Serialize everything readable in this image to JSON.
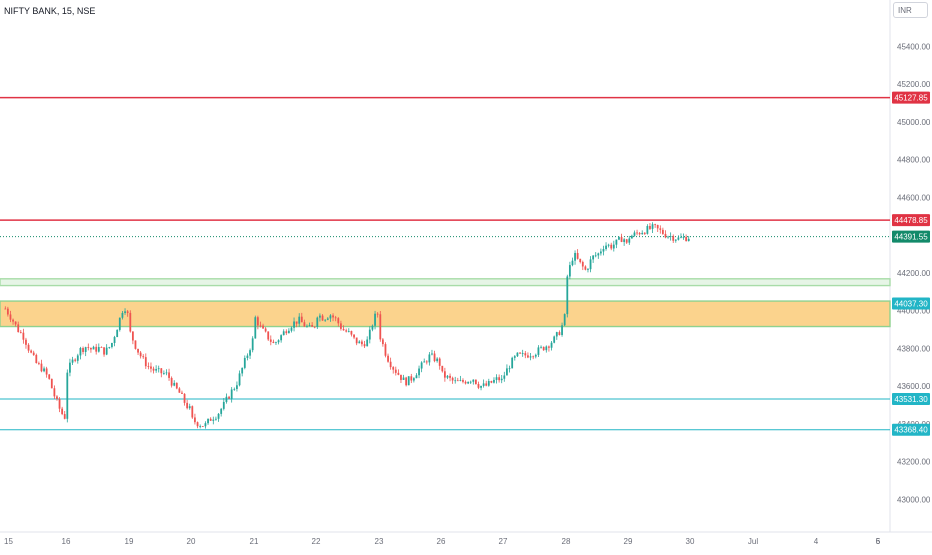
{
  "symbol_title": "NIFTY BANK, 15, NSE",
  "currency_selector": "INR",
  "colors": {
    "up": "#26a69a",
    "down": "#ef5350",
    "resistance": "#e03344",
    "support": "#22b5c6",
    "zone_fill": "#fbd38d",
    "zone_border": "#8fd18f",
    "green_band": "#a8dca8",
    "last_price": "#138a6a"
  },
  "chart_data": {
    "type": "candlestick",
    "title": "NIFTY BANK, 15, NSE",
    "ylim": [
      42900,
      45700
    ],
    "y_ticks": [
      "45400.00",
      "45200.00",
      "45000.00",
      "44800.00",
      "44600.00",
      "44400.00",
      "44200.00",
      "44000.00",
      "43800.00",
      "43600.00",
      "43400.00",
      "43200.00",
      "43000.00"
    ],
    "x_ticks": [
      "15",
      "16",
      "19",
      "20",
      "21",
      "22",
      "23",
      "26",
      "27",
      "28",
      "29",
      "30",
      "Jul",
      "4",
      "5",
      "6"
    ],
    "horizontal_levels": [
      {
        "label": "45127.85",
        "value": 45127.85,
        "style": "resistance"
      },
      {
        "label": "44478.85",
        "value": 44478.85,
        "style": "resistance"
      },
      {
        "label": "44391.55",
        "value": 44391.55,
        "style": "last_price"
      },
      {
        "label": "44037.30",
        "value": 44037.3,
        "style": "support_label"
      },
      {
        "label": "43531.30",
        "value": 43531.3,
        "style": "support"
      },
      {
        "label": "43368.40",
        "value": 43368.4,
        "style": "support"
      }
    ],
    "zones": [
      {
        "from": 44140,
        "to": 44160,
        "style": "green_band"
      },
      {
        "from": 43915,
        "to": 44050,
        "style": "orange_zone"
      }
    ],
    "price_path": [
      {
        "day": "15",
        "points": [
          44010,
          43960,
          43900,
          43860,
          43780,
          43720,
          43690,
          43640,
          43540,
          43460,
          43420
        ]
      },
      {
        "day": "16",
        "points": [
          43680,
          43740,
          43790,
          43810,
          43790,
          43800,
          43780,
          43820,
          43920,
          44030,
          43940
        ]
      },
      {
        "day": "19",
        "points": [
          43880,
          43800,
          43740,
          43700,
          43680,
          43670,
          43660,
          43600,
          43560,
          43500,
          43460
        ]
      },
      {
        "day": "20",
        "points": [
          43420,
          43400,
          43390,
          43430,
          43450,
          43500,
          43560,
          43610,
          43700,
          43790,
          43880
        ]
      },
      {
        "day": "21",
        "points": [
          43960,
          43900,
          43860,
          43820,
          43860,
          43900,
          43930,
          43950,
          43920,
          43900,
          43940
        ]
      },
      {
        "day": "22",
        "points": [
          43980,
          43960,
          43980,
          43950,
          43900,
          43880,
          43840,
          43820,
          43840,
          43960,
          44000
        ]
      },
      {
        "day": "23",
        "points": [
          43860,
          43760,
          43700,
          43660,
          43620,
          43640,
          43680,
          43720,
          43760,
          43740,
          43700
        ]
      },
      {
        "day": "26",
        "points": [
          43660,
          43640,
          43620,
          43620,
          43630,
          43640,
          43600,
          43600,
          43620,
          43640,
          43620
        ]
      },
      {
        "day": "27",
        "points": [
          43660,
          43720,
          43760,
          43760,
          43770,
          43780,
          43800,
          43820,
          43850,
          43900,
          44010
        ]
      },
      {
        "day": "28",
        "points": [
          44180,
          44300,
          44250,
          44210,
          44280,
          44300,
          44350,
          44340,
          44360,
          44390,
          44320
        ]
      },
      {
        "day": "29",
        "points": [
          44390,
          44420,
          44440,
          44400,
          44380,
          44391.55
        ]
      }
    ]
  }
}
